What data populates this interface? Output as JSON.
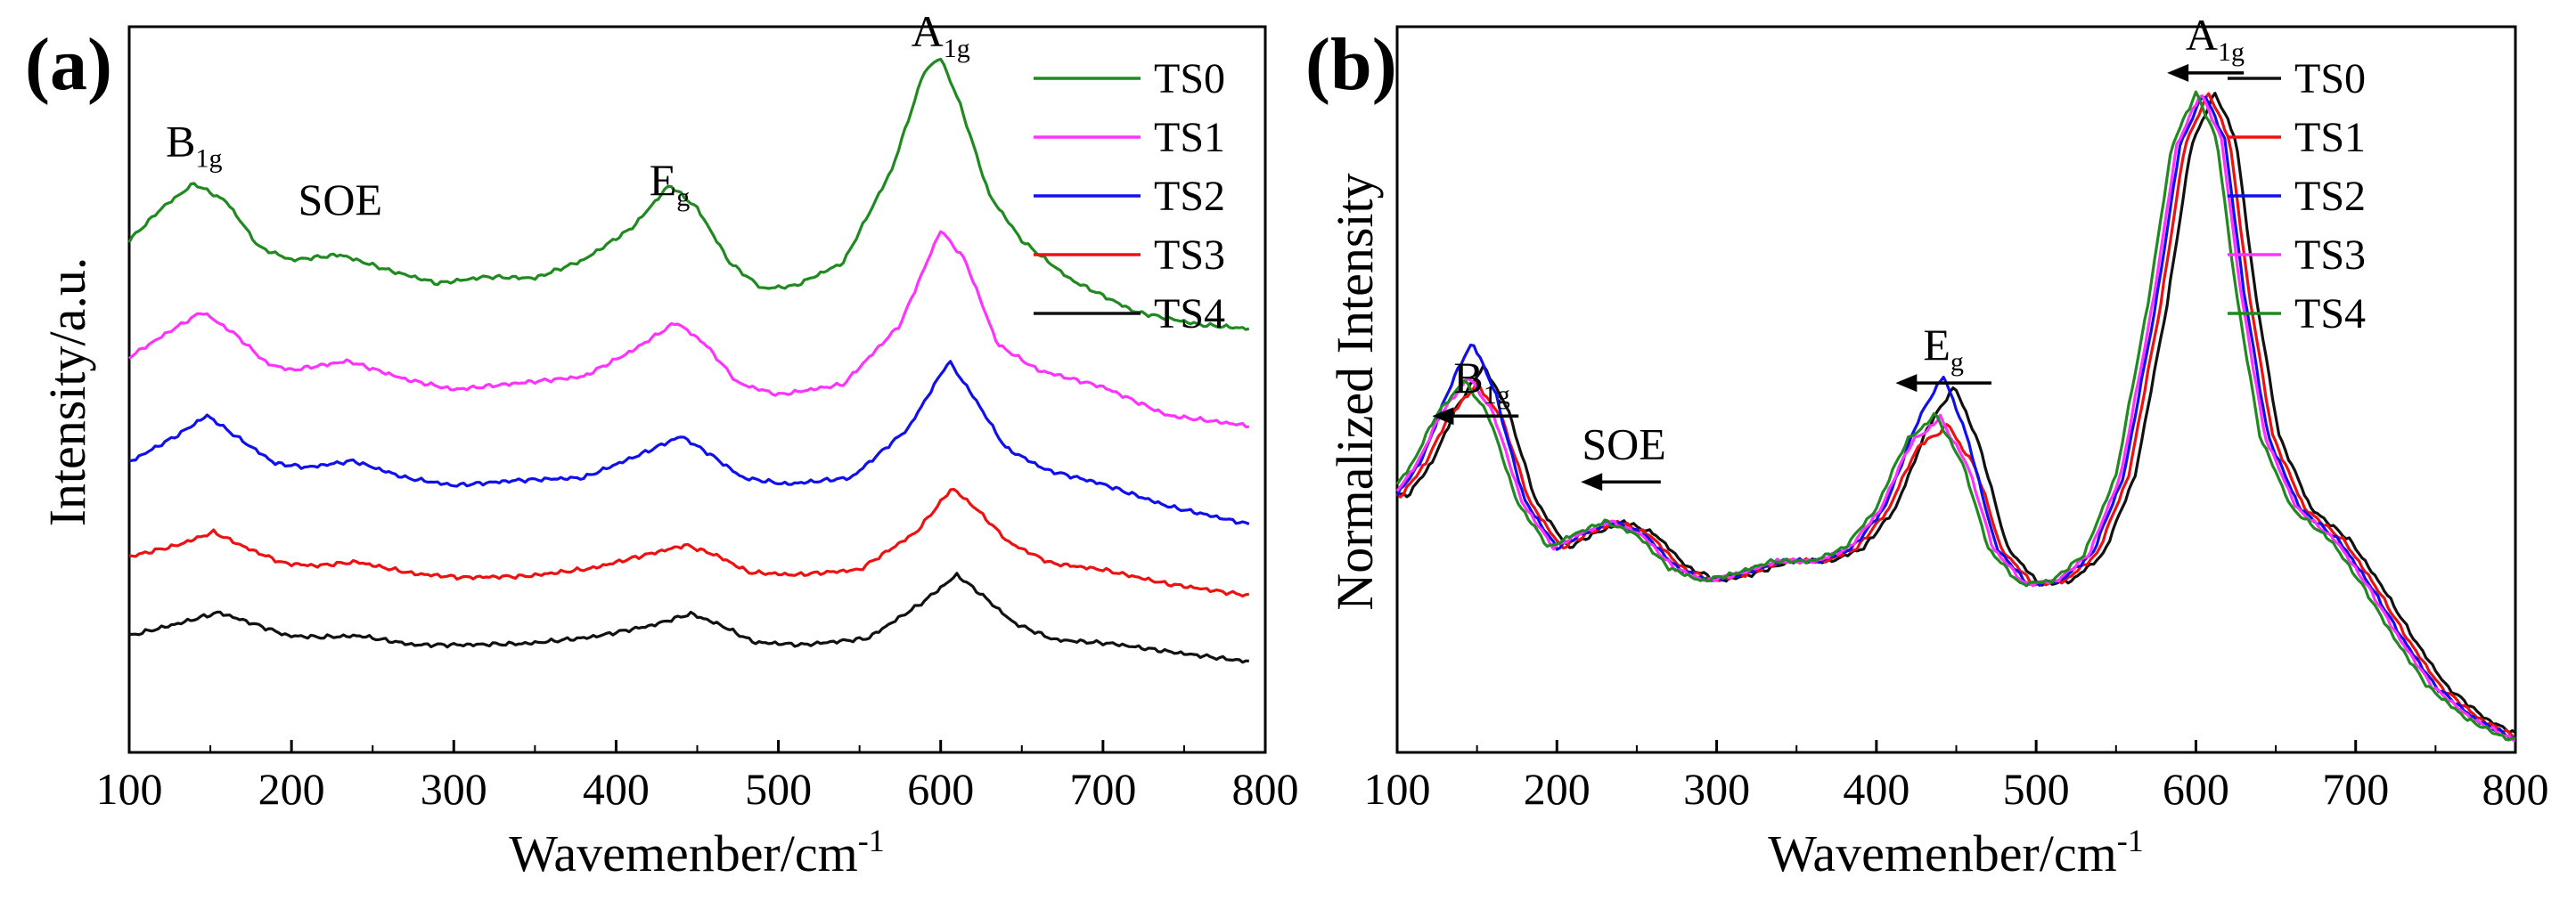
{
  "chart_data": [
    {
      "panel": "(a)",
      "type": "line",
      "xlabel_main": "Wavemenber/cm",
      "xlabel_sup": "-1",
      "ylabel": "Intensity/a.u.",
      "xlim": [
        100,
        800
      ],
      "xticks": [
        100,
        200,
        300,
        400,
        500,
        600,
        700,
        800
      ],
      "ylim": [
        0,
        5.6
      ],
      "legend_position": "top-right",
      "annotations": [
        {
          "label": "B",
          "sub": "1g",
          "x": 140,
          "y": 4.6
        },
        {
          "label": "SOE",
          "x": 230,
          "y": 4.15
        },
        {
          "label": "E",
          "sub": "g",
          "x": 433,
          "y": 4.3
        },
        {
          "label": "A",
          "sub": "1g",
          "x": 600,
          "y": 5.45
        }
      ],
      "series": [
        {
          "name": "TS0",
          "color": "#1f8a1f",
          "points": [
            [
              100,
              3.95
            ],
            [
              120,
              4.2
            ],
            [
              140,
              4.39
            ],
            [
              160,
              4.25
            ],
            [
              180,
              3.9
            ],
            [
              200,
              3.8
            ],
            [
              230,
              3.84
            ],
            [
              260,
              3.72
            ],
            [
              290,
              3.62
            ],
            [
              320,
              3.67
            ],
            [
              350,
              3.66
            ],
            [
              380,
              3.8
            ],
            [
              410,
              4.05
            ],
            [
              433,
              4.38
            ],
            [
              450,
              4.2
            ],
            [
              470,
              3.78
            ],
            [
              490,
              3.58
            ],
            [
              510,
              3.6
            ],
            [
              540,
              3.78
            ],
            [
              570,
              4.5
            ],
            [
              590,
              5.26
            ],
            [
              600,
              5.36
            ],
            [
              612,
              5.0
            ],
            [
              630,
              4.3
            ],
            [
              650,
              3.95
            ],
            [
              680,
              3.65
            ],
            [
              720,
              3.4
            ],
            [
              760,
              3.3
            ],
            [
              790,
              3.27
            ]
          ]
        },
        {
          "name": "TS1",
          "color": "#ff33ff",
          "points": [
            [
              100,
              3.05
            ],
            [
              125,
              3.25
            ],
            [
              145,
              3.4
            ],
            [
              165,
              3.23
            ],
            [
              185,
              3.0
            ],
            [
              200,
              2.95
            ],
            [
              235,
              3.02
            ],
            [
              270,
              2.88
            ],
            [
              300,
              2.8
            ],
            [
              340,
              2.85
            ],
            [
              380,
              2.9
            ],
            [
              410,
              3.1
            ],
            [
              437,
              3.32
            ],
            [
              455,
              3.15
            ],
            [
              475,
              2.85
            ],
            [
              500,
              2.76
            ],
            [
              540,
              2.84
            ],
            [
              575,
              3.3
            ],
            [
              600,
              4.03
            ],
            [
              615,
              3.8
            ],
            [
              635,
              3.15
            ],
            [
              660,
              2.95
            ],
            [
              700,
              2.82
            ],
            [
              740,
              2.6
            ],
            [
              790,
              2.52
            ]
          ]
        },
        {
          "name": "TS2",
          "color": "#1010ee",
          "points": [
            [
              100,
              2.24
            ],
            [
              130,
              2.45
            ],
            [
              148,
              2.6
            ],
            [
              168,
              2.42
            ],
            [
              190,
              2.23
            ],
            [
              210,
              2.2
            ],
            [
              238,
              2.25
            ],
            [
              270,
              2.12
            ],
            [
              300,
              2.06
            ],
            [
              340,
              2.1
            ],
            [
              380,
              2.12
            ],
            [
              415,
              2.3
            ],
            [
              440,
              2.44
            ],
            [
              458,
              2.3
            ],
            [
              478,
              2.12
            ],
            [
              505,
              2.07
            ],
            [
              545,
              2.12
            ],
            [
              580,
              2.5
            ],
            [
              605,
              3.02
            ],
            [
              620,
              2.75
            ],
            [
              640,
              2.35
            ],
            [
              665,
              2.18
            ],
            [
              700,
              2.07
            ],
            [
              740,
              1.9
            ],
            [
              790,
              1.76
            ]
          ]
        },
        {
          "name": "TS3",
          "color": "#ee1111",
          "points": [
            [
              100,
              1.51
            ],
            [
              130,
              1.6
            ],
            [
              152,
              1.7
            ],
            [
              172,
              1.58
            ],
            [
              195,
              1.46
            ],
            [
              215,
              1.44
            ],
            [
              240,
              1.47
            ],
            [
              275,
              1.38
            ],
            [
              305,
              1.35
            ],
            [
              345,
              1.36
            ],
            [
              385,
              1.42
            ],
            [
              420,
              1.53
            ],
            [
              443,
              1.6
            ],
            [
              462,
              1.52
            ],
            [
              482,
              1.39
            ],
            [
              510,
              1.37
            ],
            [
              550,
              1.41
            ],
            [
              585,
              1.7
            ],
            [
              607,
              2.04
            ],
            [
              622,
              1.88
            ],
            [
              642,
              1.62
            ],
            [
              668,
              1.46
            ],
            [
              700,
              1.41
            ],
            [
              740,
              1.3
            ],
            [
              790,
              1.21
            ]
          ]
        },
        {
          "name": "TS4",
          "color": "#111111",
          "points": [
            [
              100,
              0.9
            ],
            [
              132,
              1.0
            ],
            [
              155,
              1.08
            ],
            [
              175,
              1.0
            ],
            [
              198,
              0.9
            ],
            [
              218,
              0.89
            ],
            [
              242,
              0.9
            ],
            [
              275,
              0.83
            ],
            [
              305,
              0.83
            ],
            [
              345,
              0.84
            ],
            [
              385,
              0.89
            ],
            [
              422,
              0.98
            ],
            [
              446,
              1.07
            ],
            [
              465,
              0.98
            ],
            [
              485,
              0.85
            ],
            [
              515,
              0.83
            ],
            [
              555,
              0.88
            ],
            [
              588,
              1.15
            ],
            [
              610,
              1.37
            ],
            [
              625,
              1.22
            ],
            [
              645,
              1.0
            ],
            [
              670,
              0.87
            ],
            [
              705,
              0.84
            ],
            [
              745,
              0.77
            ],
            [
              790,
              0.7
            ]
          ]
        }
      ]
    },
    {
      "panel": "(b)",
      "type": "line",
      "xlabel_main": "Wavemenber/cm",
      "xlabel_sup": "-1",
      "ylabel": "Normalized Intensity",
      "xlim": [
        100,
        800
      ],
      "xticks": [
        100,
        200,
        300,
        400,
        500,
        600,
        700,
        800
      ],
      "ylim": [
        0,
        1.1
      ],
      "legend_position": "top-right",
      "annotations": [
        {
          "label": "A",
          "sub": "1g",
          "x": 612,
          "y": 1.065,
          "arrow_from": 630,
          "arrow_to": 582
        },
        {
          "label": "B",
          "sub": "1g",
          "x": 153,
          "y": 0.545,
          "arrow_from": 176,
          "arrow_to": 122
        },
        {
          "label": "SOE",
          "x": 242,
          "y": 0.445,
          "arrow_from": 265,
          "arrow_to": 215
        },
        {
          "label": "E",
          "sub": "g",
          "x": 442,
          "y": 0.595,
          "arrow_from": 472,
          "arrow_to": 412
        }
      ],
      "series": [
        {
          "name": "TS0",
          "color": "#111111",
          "shift": 7,
          "b1g_peak": 0.585,
          "eg_peak": 0.555
        },
        {
          "name": "TS1",
          "color": "#ee1111",
          "shift": 3,
          "b1g_peak": 0.56,
          "eg_peak": 0.5
        },
        {
          "name": "TS2",
          "color": "#1010ee",
          "shift": 0,
          "b1g_peak": 0.62,
          "eg_peak": 0.57
        },
        {
          "name": "TS3",
          "color": "#ff33ff",
          "shift": -2,
          "b1g_peak": 0.57,
          "eg_peak": 0.51
        },
        {
          "name": "TS4",
          "color": "#1f8a1f",
          "shift": -5,
          "b1g_peak": 0.565,
          "eg_peak": 0.515
        }
      ],
      "base_profile": [
        [
          100,
          0.39
        ],
        [
          115,
          0.44
        ],
        [
          130,
          0.52
        ],
        [
          147,
          0.58
        ],
        [
          162,
          0.52
        ],
        [
          180,
          0.38
        ],
        [
          200,
          0.31
        ],
        [
          215,
          0.33
        ],
        [
          235,
          0.35
        ],
        [
          255,
          0.33
        ],
        [
          275,
          0.28
        ],
        [
          295,
          0.26
        ],
        [
          315,
          0.27
        ],
        [
          340,
          0.29
        ],
        [
          365,
          0.29
        ],
        [
          385,
          0.31
        ],
        [
          405,
          0.37
        ],
        [
          425,
          0.49
        ],
        [
          442,
          0.55
        ],
        [
          458,
          0.46
        ],
        [
          475,
          0.31
        ],
        [
          495,
          0.255
        ],
        [
          515,
          0.26
        ],
        [
          535,
          0.3
        ],
        [
          555,
          0.42
        ],
        [
          575,
          0.68
        ],
        [
          590,
          0.92
        ],
        [
          605,
          1.0
        ],
        [
          618,
          0.93
        ],
        [
          630,
          0.7
        ],
        [
          645,
          0.48
        ],
        [
          665,
          0.37
        ],
        [
          690,
          0.32
        ],
        [
          710,
          0.25
        ],
        [
          730,
          0.17
        ],
        [
          750,
          0.1
        ],
        [
          775,
          0.05
        ],
        [
          800,
          0.02
        ]
      ]
    }
  ]
}
